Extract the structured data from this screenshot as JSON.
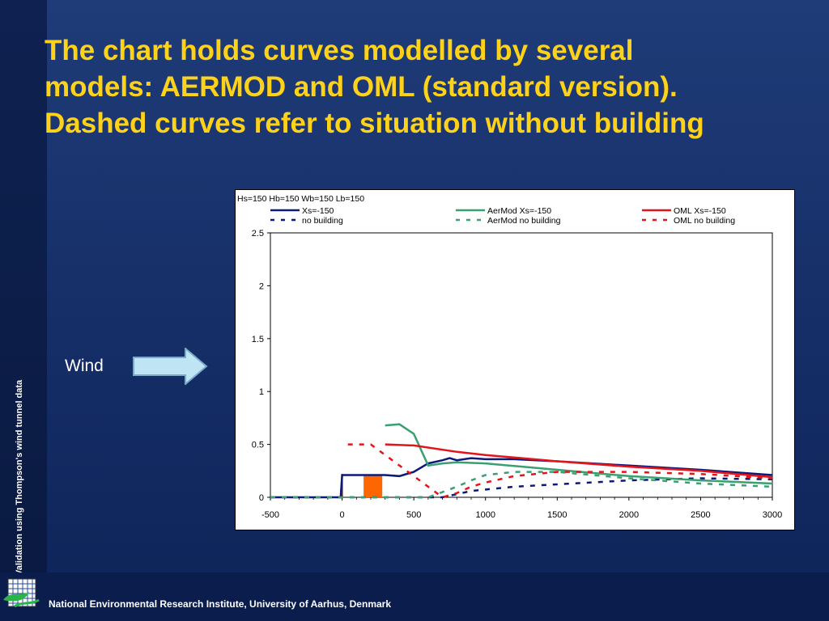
{
  "slide": {
    "title_lines": [
      "The chart holds curves modelled by several",
      "models:  AERMOD and OML (standard version).",
      "Dashed curves refer to situation without building"
    ],
    "side_text": "Validation using Thompson's wind tunnel data",
    "footer": "National Environmental Research Institute, University of Aarhus, Denmark",
    "wind_label": "Wind",
    "colors": {
      "title": "#ffd21a",
      "background": "#17306a",
      "arrow_fill": "#bfe4f4"
    }
  },
  "chart_data": {
    "type": "line",
    "title": "Hs=150 Hb=150 Wb=150 Lb=150",
    "xlabel": "",
    "ylabel": "",
    "xlim": [
      -500,
      3000
    ],
    "ylim": [
      0,
      2.5
    ],
    "xticks": [
      "-500",
      "0",
      "500",
      "1000",
      "1500",
      "2000",
      "2500",
      "3000"
    ],
    "yticks": [
      "0",
      "0.5",
      "1",
      "1.5",
      "2",
      "2.5"
    ],
    "grid": false,
    "legend_position": "top",
    "building_marker": {
      "x_range": [
        150,
        280
      ],
      "height": 0.21,
      "color": "#ff6600"
    },
    "series": [
      {
        "name": "Xs=-150",
        "color": "#0b1a7a",
        "dash": false,
        "points": [
          [
            -500,
            0
          ],
          [
            -10,
            0
          ],
          [
            0,
            0.21
          ],
          [
            300,
            0.21
          ],
          [
            400,
            0.2
          ],
          [
            500,
            0.24
          ],
          [
            600,
            0.32
          ],
          [
            700,
            0.35
          ],
          [
            750,
            0.37
          ],
          [
            800,
            0.35
          ],
          [
            900,
            0.37
          ],
          [
            1000,
            0.36
          ],
          [
            1200,
            0.36
          ],
          [
            1500,
            0.34
          ],
          [
            2000,
            0.3
          ],
          [
            2500,
            0.26
          ],
          [
            3000,
            0.21
          ]
        ]
      },
      {
        "name": "no building",
        "color": "#0b1a7a",
        "dash": true,
        "points": [
          [
            -500,
            0
          ],
          [
            700,
            0
          ],
          [
            900,
            0.06
          ],
          [
            1200,
            0.1
          ],
          [
            1600,
            0.13
          ],
          [
            2000,
            0.16
          ],
          [
            2500,
            0.18
          ],
          [
            3000,
            0.17
          ]
        ]
      },
      {
        "name": "AerMod Xs=-150",
        "color": "#3aa070",
        "dash": false,
        "points": [
          [
            300,
            0.68
          ],
          [
            400,
            0.69
          ],
          [
            500,
            0.6
          ],
          [
            600,
            0.3
          ],
          [
            700,
            0.32
          ],
          [
            800,
            0.33
          ],
          [
            1000,
            0.32
          ],
          [
            1500,
            0.26
          ],
          [
            2000,
            0.2
          ],
          [
            2500,
            0.16
          ],
          [
            3000,
            0.13
          ]
        ]
      },
      {
        "name": "AerMod no building",
        "color": "#3aa070",
        "dash": true,
        "points": [
          [
            -500,
            0
          ],
          [
            600,
            0
          ],
          [
            700,
            0.05
          ],
          [
            800,
            0.1
          ],
          [
            900,
            0.16
          ],
          [
            1000,
            0.21
          ],
          [
            1200,
            0.24
          ],
          [
            1500,
            0.24
          ],
          [
            2000,
            0.18
          ],
          [
            2500,
            0.13
          ],
          [
            3000,
            0.1
          ]
        ]
      },
      {
        "name": "OML Xs=-150",
        "color": "#e3141a",
        "dash": false,
        "points": [
          [
            300,
            0.5
          ],
          [
            500,
            0.49
          ],
          [
            800,
            0.43
          ],
          [
            1000,
            0.4
          ],
          [
            1500,
            0.34
          ],
          [
            2000,
            0.29
          ],
          [
            2500,
            0.25
          ],
          [
            3000,
            0.19
          ]
        ]
      },
      {
        "name": "OML no building",
        "color": "#e3141a",
        "dash": true,
        "points": [
          [
            40,
            0.5
          ],
          [
            100,
            0.5
          ],
          [
            150,
            0.5
          ],
          [
            200,
            0.5
          ],
          [
            700,
            0
          ],
          [
            800,
            0.04
          ],
          [
            900,
            0.1
          ],
          [
            1000,
            0.14
          ],
          [
            1200,
            0.2
          ],
          [
            1500,
            0.24
          ],
          [
            2000,
            0.24
          ],
          [
            2500,
            0.22
          ],
          [
            3000,
            0.18
          ]
        ]
      }
    ]
  }
}
